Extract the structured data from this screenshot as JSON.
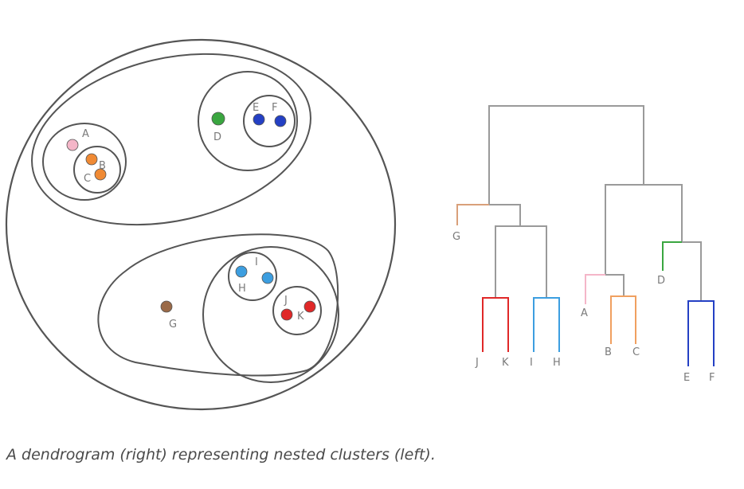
{
  "caption": "A dendrogram (right) representing nested clusters (left).",
  "points": {
    "A": {
      "label": "A",
      "color": "#f4b6c8"
    },
    "B": {
      "label": "B",
      "color": "#f08a34"
    },
    "C": {
      "label": "C",
      "color": "#f08a34"
    },
    "D": {
      "label": "D",
      "color": "#3aa640"
    },
    "E": {
      "label": "E",
      "color": "#2440c4"
    },
    "F": {
      "label": "F",
      "color": "#2440c4"
    },
    "G": {
      "label": "G",
      "color": "#9a6a48"
    },
    "H": {
      "label": "H",
      "color": "#3c9ee0"
    },
    "I": {
      "label": "I",
      "color": "#3c9ee0"
    },
    "J": {
      "label": "J",
      "color": "#e02828"
    },
    "K": {
      "label": "K",
      "color": "#e02828"
    }
  },
  "dendrogram_leaves": {
    "J": "J",
    "K": "K",
    "I": "I",
    "H": "H",
    "G": "G",
    "A": "A",
    "B": "B",
    "C": "C",
    "D": "D",
    "E": "E",
    "F": "F"
  },
  "colors": {
    "outline": "#555555",
    "tree_gray": "#9a9a9a",
    "JK": "#e02828",
    "IH": "#3c9ee0",
    "BC": "#f0a060",
    "EF": "#2440c4",
    "G_branch": "#d9a07a",
    "A_branch": "#f4b6c8",
    "D_branch": "#3aa640"
  }
}
